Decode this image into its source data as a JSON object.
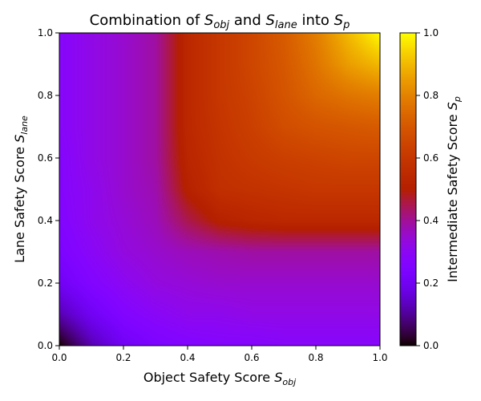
{
  "chart_data": {
    "type": "heatmap",
    "title": {
      "prefix": "Combination of ",
      "var1": "S",
      "var1_sub": "obj",
      "mid": " and ",
      "var2": "S",
      "var2_sub": "lane",
      "mid2": " into ",
      "var3": "S",
      "var3_sub": "p"
    },
    "xlabel": {
      "text": "Object Safety Score ",
      "var": "S",
      "sub": "obj"
    },
    "ylabel": {
      "text": "Lane Safety Score ",
      "var": "S",
      "sub": "lane"
    },
    "colorbar_label": {
      "text": "Intermediate Safety Score ",
      "var": "S",
      "sub": "p"
    },
    "xlim": [
      0,
      1
    ],
    "ylim": [
      0,
      1
    ],
    "clim": [
      0,
      1
    ],
    "colormap": "gnuplot",
    "x_ticks": [
      "0.0",
      "0.2",
      "0.4",
      "0.6",
      "0.8",
      "1.0"
    ],
    "y_ticks": [
      "0.0",
      "0.2",
      "0.4",
      "0.6",
      "0.8",
      "1.0"
    ],
    "colorbar_ticks": [
      "0.0",
      "0.2",
      "0.4",
      "0.6",
      "0.8",
      "1.0"
    ],
    "x_grid": [
      0,
      0.1,
      0.2,
      0.3,
      0.4,
      0.5,
      0.6,
      0.7,
      0.8,
      0.9,
      1.0
    ],
    "y_grid": [
      0,
      0.1,
      0.2,
      0.3,
      0.4,
      0.5,
      0.6,
      0.7,
      0.8,
      0.9,
      1.0
    ],
    "z": [
      [
        0.0,
        0.12,
        0.2,
        0.24,
        0.26,
        0.27,
        0.27,
        0.28,
        0.28,
        0.28,
        0.28
      ],
      [
        0.12,
        0.2,
        0.26,
        0.29,
        0.31,
        0.31,
        0.32,
        0.32,
        0.32,
        0.32,
        0.32
      ],
      [
        0.2,
        0.26,
        0.3,
        0.33,
        0.34,
        0.35,
        0.35,
        0.35,
        0.35,
        0.35,
        0.35
      ],
      [
        0.24,
        0.29,
        0.33,
        0.35,
        0.37,
        0.38,
        0.39,
        0.39,
        0.39,
        0.39,
        0.39
      ],
      [
        0.26,
        0.31,
        0.34,
        0.37,
        0.45,
        0.51,
        0.53,
        0.54,
        0.54,
        0.54,
        0.54
      ],
      [
        0.27,
        0.31,
        0.35,
        0.38,
        0.51,
        0.57,
        0.58,
        0.59,
        0.6,
        0.6,
        0.6
      ],
      [
        0.27,
        0.32,
        0.35,
        0.39,
        0.53,
        0.58,
        0.61,
        0.63,
        0.64,
        0.65,
        0.65
      ],
      [
        0.28,
        0.32,
        0.35,
        0.39,
        0.54,
        0.59,
        0.63,
        0.67,
        0.69,
        0.7,
        0.71
      ],
      [
        0.28,
        0.32,
        0.35,
        0.39,
        0.54,
        0.6,
        0.64,
        0.69,
        0.74,
        0.77,
        0.79
      ],
      [
        0.28,
        0.32,
        0.35,
        0.39,
        0.54,
        0.6,
        0.65,
        0.7,
        0.77,
        0.85,
        0.9
      ],
      [
        0.28,
        0.32,
        0.35,
        0.39,
        0.54,
        0.6,
        0.65,
        0.71,
        0.79,
        0.9,
        1.0
      ]
    ]
  }
}
